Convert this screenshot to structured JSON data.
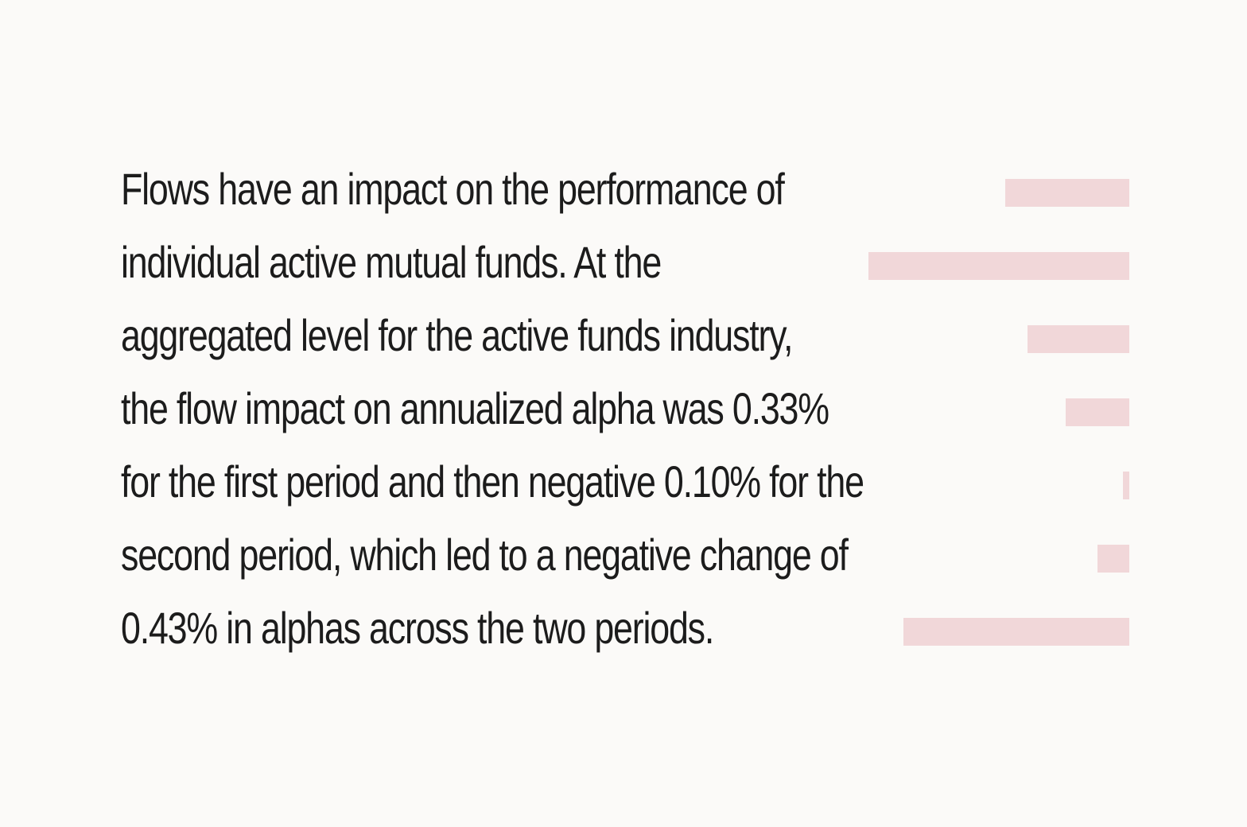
{
  "paragraph": {
    "lines": [
      "Flows have an impact on the performance of",
      "individual active mutual funds. At the",
      "aggregated level for the active funds industry,",
      "the flow impact on annualized alpha was 0.33%",
      "for the first period and then negative 0.10% for the",
      "second period, which led to a negative change of",
      "0.43% in alphas across the two periods."
    ]
  },
  "colors": {
    "background": "#fbfaf8",
    "text": "#1c1c1c",
    "accent_bar": "#f1d7d9"
  }
}
